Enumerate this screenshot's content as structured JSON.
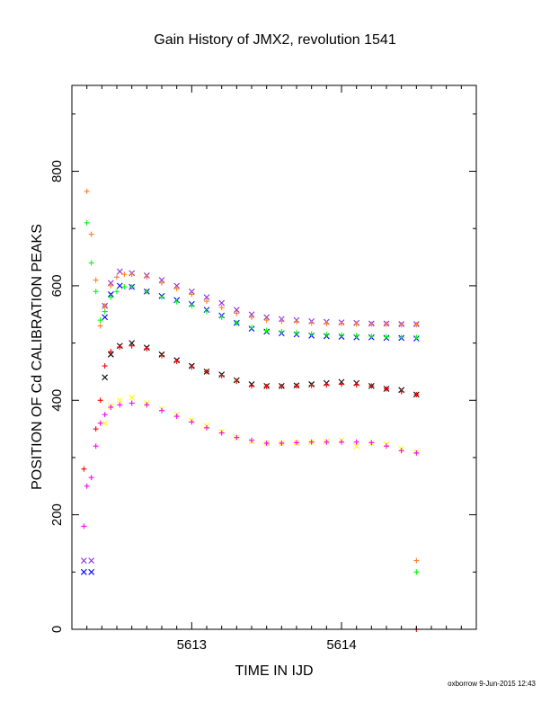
{
  "chart_data": {
    "type": "scatter",
    "title": "Gain History of JMX2, revolution 1541",
    "xlabel": "TIME IN IJD",
    "ylabel": "POSITION OF Cd CALIBRATION PEAKS",
    "xlim": [
      5612.2,
      5614.9
    ],
    "ylim": [
      0,
      950
    ],
    "xticks": [
      5613,
      5614
    ],
    "xtick_labels": [
      "5613",
      "5614"
    ],
    "yticks": [
      0,
      200,
      400,
      600,
      800
    ],
    "ytick_labels": [
      "0",
      "200",
      "400",
      "600",
      "800"
    ],
    "grid": false,
    "legend": "none",
    "series": [
      {
        "marker": "x",
        "color": "#8a2be2",
        "x": [
          5612.28,
          5612.33,
          5612.42,
          5612.46,
          5612.52,
          5612.6,
          5612.7,
          5612.8,
          5612.9,
          5613.0,
          5613.1,
          5613.2,
          5613.3,
          5613.4,
          5613.5,
          5613.6,
          5613.7,
          5613.8,
          5613.9,
          5614.0,
          5614.1,
          5614.2,
          5614.3,
          5614.4,
          5614.5
        ],
        "y": [
          120,
          120,
          565,
          605,
          625,
          622,
          618,
          610,
          600,
          590,
          580,
          570,
          558,
          550,
          545,
          542,
          540,
          538,
          537,
          536,
          535,
          534,
          534,
          533,
          533
        ]
      },
      {
        "marker": "x",
        "color": "#0000ff",
        "x": [
          5612.28,
          5612.33,
          5612.42,
          5612.46,
          5612.52,
          5612.6,
          5612.7,
          5612.8,
          5612.9,
          5613.0,
          5613.1,
          5613.2,
          5613.3,
          5613.4,
          5613.5,
          5613.6,
          5613.7,
          5613.8,
          5613.9,
          5614.0,
          5614.1,
          5614.2,
          5614.3,
          5614.4,
          5614.5
        ],
        "y": [
          100,
          100,
          545,
          585,
          600,
          598,
          590,
          582,
          575,
          568,
          558,
          548,
          535,
          525,
          520,
          517,
          515,
          513,
          512,
          511,
          510,
          510,
          509,
          509,
          508
        ]
      },
      {
        "marker": "+",
        "color": "#ff7f27",
        "x": [
          5612.3,
          5612.33,
          5612.36,
          5612.39,
          5612.42,
          5612.46,
          5612.5,
          5612.55,
          5612.6,
          5612.7,
          5612.8,
          5612.9,
          5613.0,
          5613.1,
          5613.2,
          5613.3,
          5613.4,
          5613.5,
          5613.6,
          5613.7,
          5613.8,
          5613.9,
          5614.0,
          5614.1,
          5614.2,
          5614.3,
          5614.4,
          5614.5,
          5614.5
        ],
        "y": [
          765,
          690,
          610,
          530,
          565,
          600,
          615,
          620,
          620,
          615,
          605,
          595,
          585,
          573,
          562,
          552,
          545,
          540,
          538,
          537,
          535,
          534,
          534,
          533,
          533,
          533,
          532,
          532,
          120
        ]
      },
      {
        "marker": "+",
        "color": "#00ff00",
        "x": [
          5612.3,
          5612.33,
          5612.36,
          5612.39,
          5612.42,
          5612.46,
          5612.5,
          5612.55,
          5612.6,
          5612.7,
          5612.8,
          5612.9,
          5613.0,
          5613.1,
          5613.2,
          5613.3,
          5613.4,
          5613.5,
          5613.6,
          5613.7,
          5613.8,
          5613.9,
          5614.0,
          5614.1,
          5614.2,
          5614.3,
          5614.4,
          5614.5,
          5614.5
        ],
        "y": [
          710,
          640,
          590,
          540,
          555,
          580,
          590,
          598,
          598,
          590,
          580,
          572,
          565,
          555,
          545,
          535,
          527,
          522,
          520,
          518,
          516,
          515,
          514,
          513,
          512,
          511,
          510,
          510,
          100
        ]
      },
      {
        "marker": "x",
        "color": "#000000",
        "x": [
          5612.42,
          5612.46,
          5612.52,
          5612.6,
          5612.7,
          5612.8,
          5612.9,
          5613.0,
          5613.1,
          5613.2,
          5613.3,
          5613.4,
          5613.5,
          5613.6,
          5613.7,
          5613.8,
          5613.9,
          5614.0,
          5614.1,
          5614.2,
          5614.3,
          5614.4,
          5614.5
        ],
        "y": [
          440,
          480,
          495,
          500,
          492,
          480,
          470,
          460,
          450,
          445,
          435,
          428,
          425,
          425,
          426,
          428,
          430,
          432,
          430,
          425,
          420,
          418,
          410
        ]
      },
      {
        "marker": "+",
        "color": "#ff0000",
        "x": [
          5612.28,
          5612.36,
          5612.39,
          5612.42,
          5612.46,
          5612.52,
          5612.6,
          5612.7,
          5612.8,
          5612.9,
          5613.0,
          5613.1,
          5613.2,
          5613.3,
          5613.4,
          5613.5,
          5613.6,
          5613.7,
          5613.8,
          5613.9,
          5614.0,
          5614.1,
          5614.2,
          5614.3,
          5614.4,
          5614.5
        ],
        "y": [
          280,
          350,
          400,
          460,
          485,
          493,
          495,
          490,
          478,
          468,
          458,
          450,
          443,
          433,
          425,
          424,
          424,
          425,
          426,
          427,
          428,
          427,
          425,
          420,
          415,
          410
        ]
      },
      {
        "marker": "x",
        "color": "#ffff00",
        "x": [
          5612.42,
          5612.46,
          5612.52,
          5612.6,
          5612.7,
          5612.8,
          5612.9,
          5613.0,
          5613.1,
          5613.2,
          5613.3,
          5613.4,
          5613.5,
          5613.6,
          5613.7,
          5613.8,
          5613.9,
          5614.0,
          5614.1,
          5614.2,
          5614.3,
          5614.4,
          5614.5
        ],
        "y": [
          360,
          390,
          400,
          405,
          395,
          385,
          375,
          365,
          355,
          345,
          335,
          328,
          325,
          325,
          326,
          327,
          328,
          330,
          320,
          325,
          323,
          315,
          310
        ]
      },
      {
        "marker": "+",
        "color": "#ff00ff",
        "x": [
          5612.3,
          5612.33,
          5612.36,
          5612.39,
          5612.42,
          5612.46,
          5612.52,
          5612.6,
          5612.7,
          5612.8,
          5612.9,
          5613.0,
          5613.1,
          5613.2,
          5613.3,
          5613.4,
          5613.5,
          5613.6,
          5613.7,
          5613.8,
          5613.9,
          5614.0,
          5614.1,
          5614.2,
          5614.3,
          5614.4,
          5614.5
        ],
        "y": [
          250,
          265,
          320,
          360,
          375,
          388,
          392,
          395,
          392,
          382,
          372,
          362,
          352,
          343,
          335,
          330,
          325,
          325,
          326,
          327,
          327,
          327,
          327,
          326,
          320,
          312,
          308
        ]
      }
    ],
    "isolated_points": [
      {
        "color": "#ff00ff",
        "marker": "+",
        "x": 5612.28,
        "y": 180
      },
      {
        "color": "#ff0000",
        "marker": "+",
        "x": 5614.5,
        "y": 0
      }
    ]
  },
  "footer": "oxborrow  9-Jun-2015 12:43"
}
